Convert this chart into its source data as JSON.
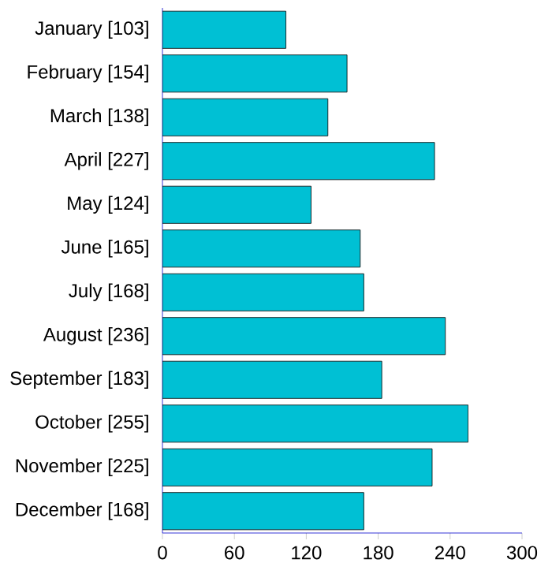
{
  "chart_data": {
    "type": "bar",
    "orientation": "horizontal",
    "categories": [
      "January [103]",
      "February [154]",
      "March [138]",
      "April [227]",
      "May [124]",
      "June [165]",
      "July [168]",
      "August [236]",
      "September [183]",
      "October [255]",
      "November [225]",
      "December [168]"
    ],
    "values": [
      103,
      154,
      138,
      227,
      124,
      165,
      168,
      236,
      183,
      255,
      225,
      168
    ],
    "color": "#00c0d4",
    "xlim": [
      0,
      300
    ],
    "xticks": [
      0,
      60,
      120,
      180,
      240,
      300
    ]
  }
}
